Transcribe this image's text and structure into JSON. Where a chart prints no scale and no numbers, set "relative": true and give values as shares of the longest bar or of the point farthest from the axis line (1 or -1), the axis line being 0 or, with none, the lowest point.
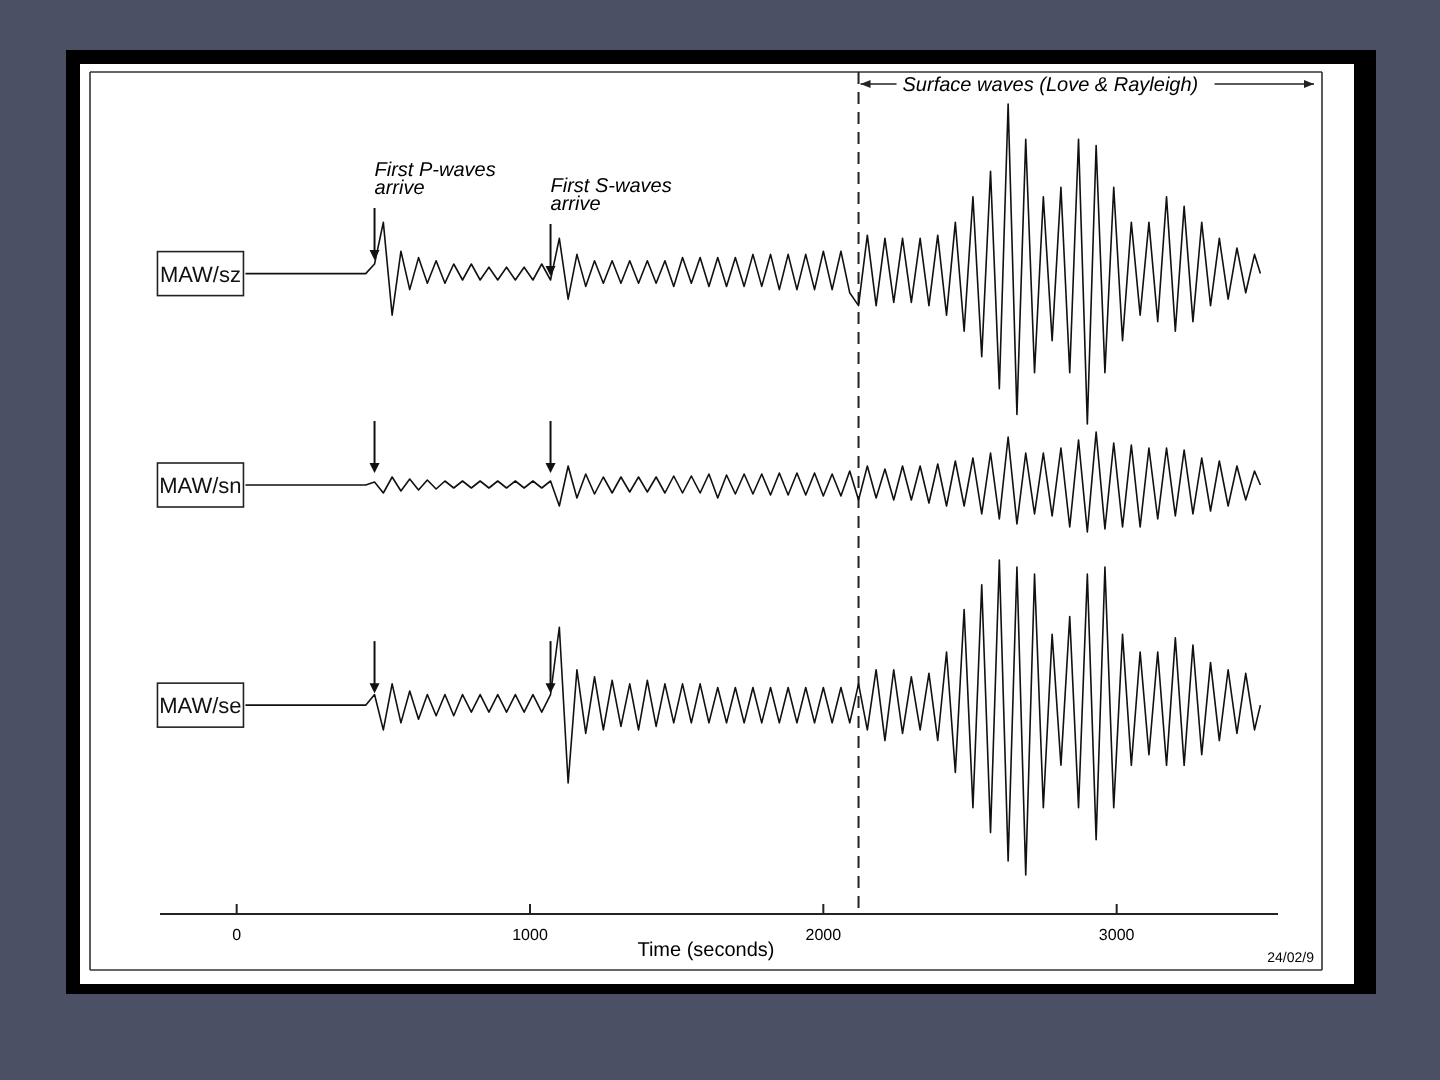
{
  "chart_data": [
    {
      "type": "line",
      "relative": true,
      "tick_labels": false,
      "xlim": [
        -500,
        3700
      ],
      "x": [
        30,
        440,
        470,
        500,
        530,
        560,
        590,
        620,
        650,
        680,
        710,
        740,
        770,
        800,
        830,
        860,
        890,
        920,
        950,
        980,
        1010,
        1040,
        1070,
        1100,
        1130,
        1160,
        1190,
        1220,
        1250,
        1280,
        1310,
        1340,
        1370,
        1400,
        1430,
        1460,
        1490,
        1520,
        1550,
        1580,
        1610,
        1640,
        1670,
        1700,
        1730,
        1760,
        1790,
        1820,
        1850,
        1880,
        1910,
        1940,
        1970,
        2000,
        2030,
        2060,
        2090,
        2120,
        2150,
        2180,
        2210,
        2240,
        2270,
        2300,
        2330,
        2360,
        2390,
        2420,
        2450,
        2480,
        2510,
        2540,
        2570,
        2600,
        2630,
        2660,
        2690,
        2720,
        2750,
        2780,
        2810,
        2840,
        2870,
        2900,
        2930,
        2960,
        2990,
        3020,
        3050,
        3080,
        3110,
        3140,
        3170,
        3200,
        3230,
        3260,
        3290,
        3320,
        3350,
        3380,
        3410,
        3440,
        3470,
        3490
      ],
      "series": [
        {
          "name": "MAW/sz",
          "color": "#111111",
          "values": [
            0.47,
            0.47,
            0.5,
            0.63,
            0.34,
            0.54,
            0.42,
            0.52,
            0.44,
            0.51,
            0.44,
            0.5,
            0.45,
            0.5,
            0.45,
            0.49,
            0.45,
            0.49,
            0.45,
            0.49,
            0.45,
            0.5,
            0.45,
            0.58,
            0.39,
            0.53,
            0.43,
            0.51,
            0.44,
            0.51,
            0.44,
            0.51,
            0.44,
            0.51,
            0.44,
            0.51,
            0.43,
            0.52,
            0.44,
            0.52,
            0.43,
            0.52,
            0.43,
            0.52,
            0.43,
            0.53,
            0.43,
            0.53,
            0.42,
            0.53,
            0.42,
            0.53,
            0.42,
            0.54,
            0.42,
            0.54,
            0.41,
            0.37,
            0.59,
            0.37,
            0.58,
            0.38,
            0.58,
            0.38,
            0.58,
            0.37,
            0.59,
            0.34,
            0.63,
            0.29,
            0.71,
            0.21,
            0.79,
            0.11,
            1,
            0.03,
            0.89,
            0.16,
            0.71,
            0.26,
            0.74,
            0.16,
            0.89,
            0,
            0.87,
            0.16,
            0.74,
            0.26,
            0.63,
            0.34,
            0.63,
            0.32,
            0.71,
            0.29,
            0.68,
            0.32,
            0.63,
            0.37,
            0.58,
            0.39,
            0.55,
            0.41,
            0.53,
            0.47
          ]
        }
      ],
      "annotations": [
        {
          "text": "First P-waves arrive",
          "x": 470,
          "y": 0.5
        },
        {
          "text": "First S-waves arrive",
          "x": 1070,
          "y": 0.45
        }
      ],
      "ref_lines": [
        {
          "axis": "x",
          "value": 2120,
          "label": "Surface waves (Love & Rayleigh)",
          "line_style": "dashed"
        }
      ]
    },
    {
      "type": "line",
      "relative": true,
      "tick_labels": false,
      "xlim": [
        -500,
        3700
      ],
      "ref_lines": [
        {
          "axis": "x",
          "value": 2120,
          "line_style": "dashed"
        }
      ],
      "x": [
        30,
        440,
        470,
        500,
        530,
        560,
        590,
        620,
        650,
        680,
        710,
        740,
        770,
        800,
        830,
        860,
        890,
        920,
        950,
        980,
        1010,
        1040,
        1070,
        1100,
        1130,
        1160,
        1190,
        1220,
        1250,
        1280,
        1310,
        1340,
        1370,
        1400,
        1430,
        1460,
        1490,
        1520,
        1550,
        1580,
        1610,
        1640,
        1670,
        1700,
        1730,
        1760,
        1790,
        1820,
        1850,
        1880,
        1910,
        1940,
        1970,
        2000,
        2030,
        2060,
        2090,
        2120,
        2150,
        2180,
        2210,
        2240,
        2270,
        2300,
        2330,
        2360,
        2390,
        2420,
        2450,
        2480,
        2510,
        2540,
        2570,
        2600,
        2630,
        2660,
        2690,
        2720,
        2750,
        2780,
        2810,
        2840,
        2870,
        2900,
        2930,
        2960,
        2990,
        3020,
        3050,
        3080,
        3110,
        3140,
        3170,
        3200,
        3230,
        3260,
        3290,
        3320,
        3350,
        3380,
        3410,
        3440,
        3470,
        3490
      ],
      "series": [
        {
          "name": "MAW/sn",
          "color": "#111111",
          "values": [
            0.47,
            0.47,
            0.5,
            0.39,
            0.55,
            0.41,
            0.53,
            0.42,
            0.52,
            0.43,
            0.51,
            0.44,
            0.51,
            0.44,
            0.51,
            0.44,
            0.51,
            0.44,
            0.51,
            0.44,
            0.51,
            0.44,
            0.51,
            0.26,
            0.66,
            0.34,
            0.58,
            0.38,
            0.55,
            0.39,
            0.55,
            0.4,
            0.55,
            0.4,
            0.55,
            0.39,
            0.56,
            0.39,
            0.56,
            0.39,
            0.58,
            0.34,
            0.57,
            0.38,
            0.58,
            0.38,
            0.58,
            0.37,
            0.59,
            0.37,
            0.59,
            0.37,
            0.59,
            0.36,
            0.58,
            0.36,
            0.61,
            0.32,
            0.66,
            0.34,
            0.63,
            0.32,
            0.66,
            0.32,
            0.66,
            0.29,
            0.68,
            0.26,
            0.71,
            0.26,
            0.74,
            0.18,
            0.79,
            0.13,
            0.95,
            0.08,
            0.79,
            0.18,
            0.79,
            0.16,
            0.84,
            0.05,
            0.92,
            0,
            1,
            0.03,
            0.89,
            0.05,
            0.87,
            0.05,
            0.84,
            0.13,
            0.84,
            0.16,
            0.82,
            0.18,
            0.74,
            0.21,
            0.71,
            0.26,
            0.66,
            0.32,
            0.61,
            0.47
          ]
        }
      ]
    },
    {
      "type": "line",
      "relative": true,
      "xlim": [
        -500,
        3700
      ],
      "xticks": [
        0,
        1000,
        2000,
        3000
      ],
      "xlabel": "Time (seconds)",
      "ref_lines": [
        {
          "axis": "x",
          "value": 2120,
          "line_style": "dashed"
        }
      ],
      "x": [
        30,
        440,
        470,
        500,
        530,
        560,
        590,
        620,
        650,
        680,
        710,
        740,
        770,
        800,
        830,
        860,
        890,
        920,
        950,
        980,
        1010,
        1040,
        1070,
        1100,
        1130,
        1160,
        1190,
        1220,
        1250,
        1280,
        1310,
        1340,
        1370,
        1400,
        1430,
        1460,
        1490,
        1520,
        1550,
        1580,
        1610,
        1640,
        1670,
        1700,
        1730,
        1760,
        1790,
        1820,
        1850,
        1880,
        1910,
        1940,
        1970,
        2000,
        2030,
        2060,
        2090,
        2120,
        2150,
        2180,
        2210,
        2240,
        2270,
        2300,
        2330,
        2360,
        2390,
        2420,
        2450,
        2480,
        2510,
        2540,
        2570,
        2600,
        2630,
        2660,
        2690,
        2720,
        2750,
        2780,
        2810,
        2840,
        2870,
        2900,
        2930,
        2960,
        2990,
        3020,
        3050,
        3080,
        3110,
        3140,
        3170,
        3200,
        3230,
        3260,
        3290,
        3320,
        3350,
        3380,
        3410,
        3440,
        3470,
        3490
      ],
      "series": [
        {
          "name": "MAW/se",
          "color": "#111111",
          "values": [
            0.59,
            0.59,
            0.62,
            0.52,
            0.65,
            0.54,
            0.63,
            0.55,
            0.62,
            0.56,
            0.62,
            0.56,
            0.62,
            0.57,
            0.62,
            0.57,
            0.62,
            0.57,
            0.62,
            0.57,
            0.62,
            0.57,
            0.62,
            0.81,
            0.37,
            0.69,
            0.51,
            0.67,
            0.52,
            0.66,
            0.53,
            0.65,
            0.52,
            0.66,
            0.53,
            0.65,
            0.54,
            0.65,
            0.54,
            0.65,
            0.54,
            0.64,
            0.54,
            0.64,
            0.54,
            0.64,
            0.54,
            0.64,
            0.54,
            0.64,
            0.54,
            0.64,
            0.54,
            0.64,
            0.54,
            0.64,
            0.54,
            0.65,
            0.52,
            0.69,
            0.49,
            0.69,
            0.51,
            0.67,
            0.52,
            0.68,
            0.49,
            0.74,
            0.4,
            0.86,
            0.3,
            0.93,
            0.23,
            1,
            0.15,
            0.98,
            0.11,
            0.96,
            0.3,
            0.79,
            0.42,
            0.84,
            0.3,
            0.96,
            0.21,
            0.98,
            0.3,
            0.79,
            0.42,
            0.74,
            0.45,
            0.74,
            0.42,
            0.78,
            0.42,
            0.76,
            0.45,
            0.71,
            0.49,
            0.69,
            0.51,
            0.68,
            0.52,
            0.59
          ]
        }
      ],
      "annotations": [
        "24/02/9"
      ]
    }
  ]
}
